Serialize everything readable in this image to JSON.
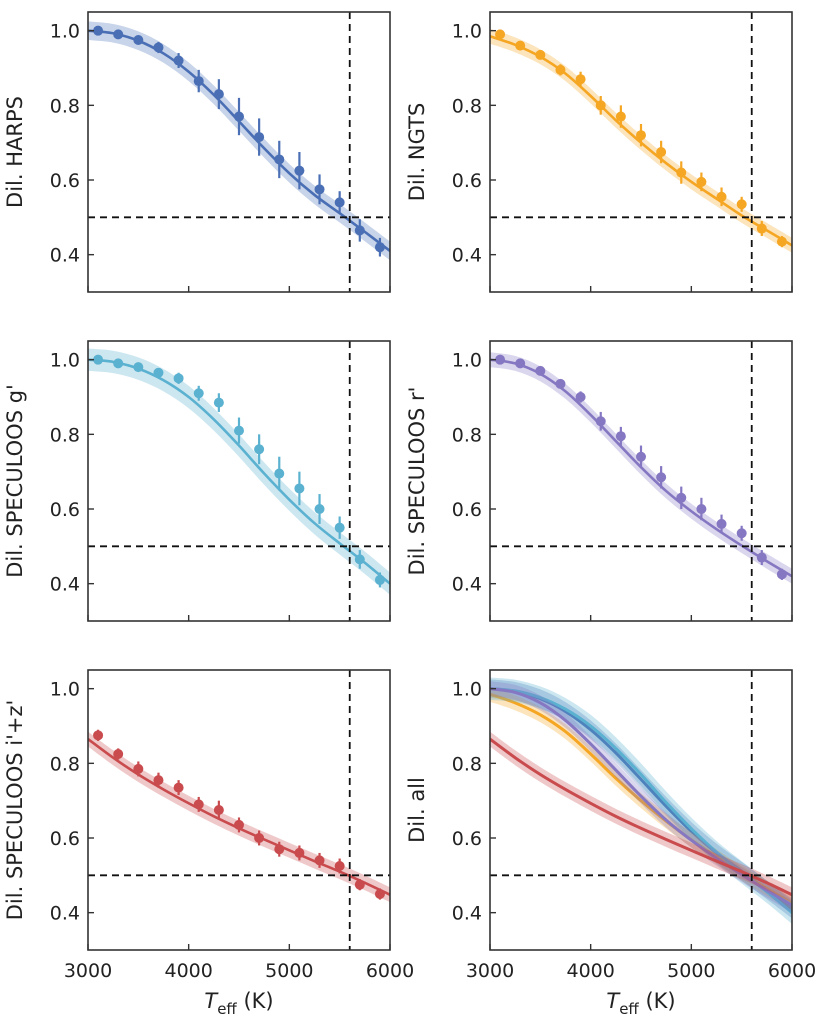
{
  "figure": {
    "xlabel_main": "T",
    "xlabel_sub": "eff",
    "xlabel_unit": " (K)"
  },
  "chart_data": [
    {
      "type": "scatter",
      "title": "",
      "ylabel": "Dil. HARPS",
      "color": "#4a6fb5",
      "xlim": [
        3000,
        6000
      ],
      "ylim": [
        0.3,
        1.05
      ],
      "xticks": [
        3000,
        4000,
        5000,
        6000
      ],
      "yticks": [
        0.4,
        0.6,
        0.8,
        1.0
      ],
      "ref_x": 5600,
      "ref_y": 0.5,
      "curve": {
        "x": [
          3000,
          3250,
          3500,
          3750,
          4000,
          4250,
          4500,
          4750,
          5000,
          5250,
          5500,
          5750,
          6000
        ],
        "y": [
          1.0,
          0.993,
          0.973,
          0.939,
          0.89,
          0.828,
          0.757,
          0.685,
          0.618,
          0.56,
          0.511,
          0.461,
          0.41
        ],
        "band": 0.025
      },
      "points": {
        "x": [
          3100,
          3300,
          3500,
          3700,
          3900,
          4100,
          4300,
          4500,
          4700,
          4900,
          5100,
          5300,
          5500,
          5700,
          5900
        ],
        "y": [
          1.0,
          0.99,
          0.975,
          0.955,
          0.92,
          0.865,
          0.83,
          0.77,
          0.715,
          0.655,
          0.625,
          0.575,
          0.54,
          0.465,
          0.42
        ],
        "err": [
          0.005,
          0.008,
          0.01,
          0.015,
          0.02,
          0.03,
          0.04,
          0.05,
          0.05,
          0.05,
          0.05,
          0.04,
          0.03,
          0.03,
          0.025
        ]
      }
    },
    {
      "type": "scatter",
      "title": "",
      "ylabel": "Dil. NGTS",
      "color": "#f5a623",
      "xlim": [
        3000,
        6000
      ],
      "ylim": [
        0.3,
        1.05
      ],
      "xticks": [
        3000,
        4000,
        5000,
        6000
      ],
      "yticks": [
        0.4,
        0.6,
        0.8,
        1.0
      ],
      "ref_x": 5600,
      "ref_y": 0.5,
      "curve": {
        "x": [
          3000,
          3250,
          3500,
          3750,
          4000,
          4250,
          4500,
          4750,
          5000,
          5250,
          5500,
          5750,
          6000
        ],
        "y": [
          0.985,
          0.962,
          0.93,
          0.885,
          0.825,
          0.76,
          0.7,
          0.645,
          0.595,
          0.55,
          0.505,
          0.465,
          0.425
        ],
        "band": 0.02
      },
      "points": {
        "x": [
          3100,
          3300,
          3500,
          3700,
          3900,
          4100,
          4300,
          4500,
          4700,
          4900,
          5100,
          5300,
          5500,
          5700,
          5900
        ],
        "y": [
          0.99,
          0.96,
          0.935,
          0.895,
          0.87,
          0.8,
          0.77,
          0.72,
          0.675,
          0.62,
          0.595,
          0.555,
          0.535,
          0.47,
          0.435
        ],
        "err": [
          0.01,
          0.01,
          0.01,
          0.015,
          0.02,
          0.025,
          0.03,
          0.03,
          0.03,
          0.03,
          0.025,
          0.025,
          0.02,
          0.02,
          0.015
        ]
      }
    },
    {
      "type": "scatter",
      "title": "",
      "ylabel": "Dil. SPECULOOS g'",
      "color": "#5bb1d0",
      "xlim": [
        3000,
        6000
      ],
      "ylim": [
        0.3,
        1.05
      ],
      "xticks": [
        3000,
        4000,
        5000,
        6000
      ],
      "yticks": [
        0.4,
        0.6,
        0.8,
        1.0
      ],
      "ref_x": 5600,
      "ref_y": 0.5,
      "curve": {
        "x": [
          3000,
          3250,
          3500,
          3750,
          4000,
          4250,
          4500,
          4750,
          5000,
          5250,
          5500,
          5750,
          6000
        ],
        "y": [
          1.0,
          0.994,
          0.976,
          0.945,
          0.9,
          0.84,
          0.77,
          0.695,
          0.625,
          0.562,
          0.508,
          0.456,
          0.4
        ],
        "band": 0.03
      },
      "points": {
        "x": [
          3100,
          3300,
          3500,
          3700,
          3900,
          4100,
          4300,
          4500,
          4700,
          4900,
          5100,
          5300,
          5500,
          5700,
          5900
        ],
        "y": [
          1.0,
          0.99,
          0.98,
          0.965,
          0.95,
          0.91,
          0.885,
          0.81,
          0.76,
          0.695,
          0.655,
          0.6,
          0.55,
          0.465,
          0.41
        ],
        "err": [
          0.005,
          0.008,
          0.01,
          0.012,
          0.015,
          0.02,
          0.025,
          0.035,
          0.04,
          0.045,
          0.045,
          0.04,
          0.03,
          0.025,
          0.02
        ]
      }
    },
    {
      "type": "scatter",
      "title": "",
      "ylabel": "Dil. SPECULOOS r'",
      "color": "#8677c2",
      "xlim": [
        3000,
        6000
      ],
      "ylim": [
        0.3,
        1.05
      ],
      "xticks": [
        3000,
        4000,
        5000,
        6000
      ],
      "yticks": [
        0.4,
        0.6,
        0.8,
        1.0
      ],
      "ref_x": 5600,
      "ref_y": 0.5,
      "curve": {
        "x": [
          3000,
          3250,
          3500,
          3750,
          4000,
          4250,
          4500,
          4750,
          5000,
          5250,
          5500,
          5750,
          6000
        ],
        "y": [
          1.0,
          0.99,
          0.962,
          0.915,
          0.852,
          0.782,
          0.712,
          0.648,
          0.594,
          0.546,
          0.502,
          0.46,
          0.42
        ],
        "band": 0.02
      },
      "points": {
        "x": [
          3100,
          3300,
          3500,
          3700,
          3900,
          4100,
          4300,
          4500,
          4700,
          4900,
          5100,
          5300,
          5500,
          5700,
          5900
        ],
        "y": [
          1.0,
          0.99,
          0.97,
          0.935,
          0.9,
          0.835,
          0.795,
          0.74,
          0.685,
          0.63,
          0.6,
          0.56,
          0.535,
          0.47,
          0.425
        ],
        "err": [
          0.005,
          0.008,
          0.01,
          0.012,
          0.015,
          0.025,
          0.025,
          0.03,
          0.03,
          0.03,
          0.03,
          0.025,
          0.02,
          0.02,
          0.015
        ]
      }
    },
    {
      "type": "scatter",
      "title": "",
      "ylabel": "Dil. SPECULOOS i'+z'",
      "color": "#c94b4e",
      "xlim": [
        3000,
        6000
      ],
      "ylim": [
        0.3,
        1.05
      ],
      "xticks": [
        3000,
        4000,
        5000,
        6000
      ],
      "yticks": [
        0.4,
        0.6,
        0.8,
        1.0
      ],
      "ref_x": 5600,
      "ref_y": 0.5,
      "curve": {
        "x": [
          3000,
          3250,
          3500,
          3750,
          4000,
          4250,
          4500,
          4750,
          5000,
          5250,
          5500,
          5750,
          6000
        ],
        "y": [
          0.865,
          0.815,
          0.77,
          0.73,
          0.693,
          0.658,
          0.626,
          0.596,
          0.567,
          0.538,
          0.51,
          0.48,
          0.448
        ],
        "band": 0.02
      },
      "points": {
        "x": [
          3100,
          3300,
          3500,
          3700,
          3900,
          4100,
          4300,
          4500,
          4700,
          4900,
          5100,
          5300,
          5500,
          5700,
          5900
        ],
        "y": [
          0.875,
          0.825,
          0.785,
          0.755,
          0.735,
          0.69,
          0.675,
          0.635,
          0.6,
          0.57,
          0.56,
          0.54,
          0.525,
          0.475,
          0.45
        ],
        "err": [
          0.015,
          0.015,
          0.02,
          0.02,
          0.02,
          0.02,
          0.025,
          0.02,
          0.02,
          0.02,
          0.02,
          0.02,
          0.02,
          0.015,
          0.015
        ]
      }
    },
    {
      "type": "line",
      "title": "",
      "ylabel": "Dil. all",
      "xlim": [
        3000,
        6000
      ],
      "ylim": [
        0.3,
        1.05
      ],
      "xticks": [
        3000,
        4000,
        5000,
        6000
      ],
      "yticks": [
        0.4,
        0.6,
        0.8,
        1.0
      ],
      "ref_x": 5600,
      "ref_y": 0.5,
      "series": [
        {
          "name": "HARPS",
          "color": "#4a6fb5",
          "x": [
            3000,
            3250,
            3500,
            3750,
            4000,
            4250,
            4500,
            4750,
            5000,
            5250,
            5500,
            5750,
            6000
          ],
          "y": [
            1.0,
            0.993,
            0.973,
            0.939,
            0.89,
            0.828,
            0.757,
            0.685,
            0.618,
            0.56,
            0.511,
            0.461,
            0.41
          ],
          "band": 0.025
        },
        {
          "name": "NGTS",
          "color": "#f5a623",
          "x": [
            3000,
            3250,
            3500,
            3750,
            4000,
            4250,
            4500,
            4750,
            5000,
            5250,
            5500,
            5750,
            6000
          ],
          "y": [
            0.985,
            0.962,
            0.93,
            0.885,
            0.825,
            0.76,
            0.7,
            0.645,
            0.595,
            0.55,
            0.505,
            0.465,
            0.425
          ],
          "band": 0.02
        },
        {
          "name": "SPECULOOS g'",
          "color": "#5bb1d0",
          "x": [
            3000,
            3250,
            3500,
            3750,
            4000,
            4250,
            4500,
            4750,
            5000,
            5250,
            5500,
            5750,
            6000
          ],
          "y": [
            1.0,
            0.994,
            0.976,
            0.945,
            0.9,
            0.84,
            0.77,
            0.695,
            0.625,
            0.562,
            0.508,
            0.456,
            0.4
          ],
          "band": 0.03
        },
        {
          "name": "SPECULOOS r'",
          "color": "#8677c2",
          "x": [
            3000,
            3250,
            3500,
            3750,
            4000,
            4250,
            4500,
            4750,
            5000,
            5250,
            5500,
            5750,
            6000
          ],
          "y": [
            1.0,
            0.99,
            0.962,
            0.915,
            0.852,
            0.782,
            0.712,
            0.648,
            0.594,
            0.546,
            0.502,
            0.46,
            0.42
          ],
          "band": 0.02
        },
        {
          "name": "SPECULOOS i'+z'",
          "color": "#c94b4e",
          "x": [
            3000,
            3250,
            3500,
            3750,
            4000,
            4250,
            4500,
            4750,
            5000,
            5250,
            5500,
            5750,
            6000
          ],
          "y": [
            0.865,
            0.815,
            0.77,
            0.73,
            0.693,
            0.658,
            0.626,
            0.596,
            0.567,
            0.538,
            0.51,
            0.48,
            0.448
          ],
          "band": 0.02
        }
      ]
    }
  ]
}
